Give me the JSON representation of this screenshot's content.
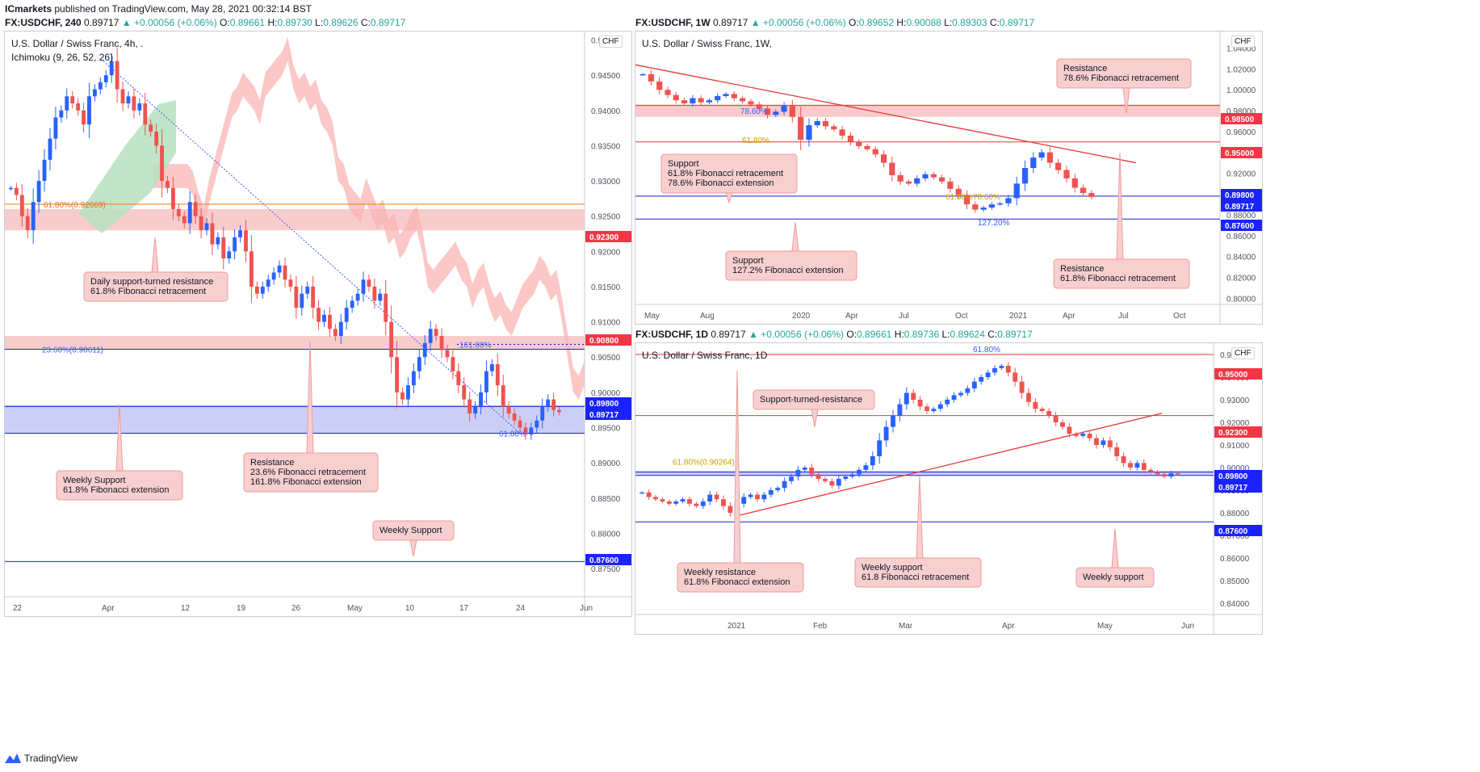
{
  "header": {
    "publisher": "ICmarkets",
    "published_text": "published on TradingView.com, May 28, 2021 00:32:14 BST"
  },
  "colors": {
    "up": "#2962ff",
    "down": "#ef5350",
    "resistance_zone": "#f7c6c6",
    "support_zone": "#c5caf7",
    "red_line": "#e53935",
    "blue_line": "#1a23c9",
    "cloud_red": "#f9b4b4",
    "cloud_green": "#b7dfbf",
    "callout_fill": "#f7cfcf",
    "callout_border": "#ee9b9b"
  },
  "panels": [
    {
      "id": "h4",
      "info": {
        "symbol": "FX:USDCHF, 240",
        "last": "0.89717",
        "change": "+0.00056 (+0.06%)",
        "o": "0.89661",
        "h": "0.89730",
        "l": "0.89626",
        "c": "0.89717"
      },
      "title": "U.S. Dollar / Swiss Franc, 4h, .",
      "indicator": "Ichimoku (9, 26, 52, 26)",
      "currency": "CHF",
      "chart_data": {
        "type": "candlestick",
        "ylim": [
          0.871,
          0.9512
        ],
        "y_ticks": [
          "0.95000",
          "0.94500",
          "0.94000",
          "0.93500",
          "0.93000",
          "0.92500",
          "0.92000",
          "0.91500",
          "0.91000",
          "0.90500",
          "0.90000",
          "0.89500",
          "0.89000",
          "0.88500",
          "0.88000",
          "0.87500"
        ],
        "x_ticks": [
          "22",
          "Apr",
          "12",
          "19",
          "26",
          "May",
          "10",
          "17",
          "24",
          "Jun"
        ],
        "price_labels": [
          {
            "value": "0.92300",
            "kind": "red"
          },
          {
            "value": "0.90800",
            "kind": "red"
          },
          {
            "value": "0.89800",
            "kind": "blue"
          },
          {
            "value": "0.89717",
            "kind": "blue"
          },
          {
            "value": "0.87600",
            "kind": "blue"
          }
        ],
        "fib_labels": [
          "61.80%(0.92669)",
          "23.60%(0.90611)",
          "161.80%",
          "61.80%"
        ],
        "annotations": [
          {
            "lines": [
              "Daily support-turned resistance",
              "61.8% Fibonacci retracement"
            ]
          },
          {
            "lines": [
              "Resistance",
              "23.6% Fibonacci retracement",
              "161.8% Fibonacci extension"
            ]
          },
          {
            "lines": [
              "Weekly Support",
              "61.8% Fibonacci extension"
            ]
          },
          {
            "lines": [
              "Weekly Support"
            ]
          }
        ],
        "series": [
          {
            "values": [
              0.929,
              0.928,
              0.925,
              0.923,
              0.927,
              0.93,
              0.933,
              0.936,
              0.939,
              0.94,
              0.942,
              0.941,
              0.94,
              0.938,
              0.942,
              0.943,
              0.944,
              0.945,
              0.947,
              0.943,
              0.941,
              0.942,
              0.94,
              0.941,
              0.938,
              0.937,
              0.935,
              0.93,
              0.929,
              0.926,
              0.925,
              0.924,
              0.927,
              0.925,
              0.923,
              0.924,
              0.921,
              0.922,
              0.919,
              0.92,
              0.922,
              0.923,
              0.92,
              0.915,
              0.914,
              0.915,
              0.916,
              0.917,
              0.918,
              0.916,
              0.915,
              0.912,
              0.914,
              0.915,
              0.912,
              0.91,
              0.911,
              0.909,
              0.908,
              0.91,
              0.912,
              0.913,
              0.914,
              0.916,
              0.915,
              0.913,
              0.914,
              0.91,
              0.905,
              0.9,
              0.899,
              0.901,
              0.903,
              0.905,
              0.907,
              0.909,
              0.908,
              0.906,
              0.905,
              0.903,
              0.901,
              0.899,
              0.897,
              0.898,
              0.9,
              0.903,
              0.904,
              0.901,
              0.898,
              0.897,
              0.896,
              0.895,
              0.894,
              0.895,
              0.896,
              0.898,
              0.899,
              0.8975,
              0.8972
            ]
          }
        ]
      }
    },
    {
      "id": "w1",
      "info": {
        "symbol": "FX:USDCHF, 1W",
        "last": "0.89717",
        "change": "+0.00056 (+0.06%)",
        "o": "0.89652",
        "h": "0.90088",
        "l": "0.89303",
        "c": "0.89717"
      },
      "title": "U.S. Dollar / Swiss Franc, 1W,",
      "currency": "CHF",
      "chart_data": {
        "type": "candlestick",
        "ylim": [
          0.794,
          1.056
        ],
        "y_ticks": [
          "1.04000",
          "1.02000",
          "1.00000",
          "0.98000",
          "0.96000",
          "0.94000",
          "0.92000",
          "0.90000",
          "0.88000",
          "0.86000",
          "0.84000",
          "0.82000",
          "0.80000"
        ],
        "x_ticks": [
          "May",
          "Aug",
          "2020",
          "Apr",
          "Jul",
          "Oct",
          "2021",
          "Apr",
          "Jul",
          "Oct"
        ],
        "price_labels": [
          {
            "value": "0.98500",
            "kind": "red"
          },
          {
            "value": "0.95000",
            "kind": "red"
          },
          {
            "value": "0.89800",
            "kind": "blue"
          },
          {
            "value": "0.89717",
            "kind": "blue"
          },
          {
            "value": "0.87600",
            "kind": "blue"
          }
        ],
        "fib_labels": [
          "78.60%",
          "61.80%",
          "61.80%",
          "78.60%",
          "127.20%"
        ],
        "annotations": [
          {
            "lines": [
              "Resistance",
              "78.6% Fibonacci retracement"
            ]
          },
          {
            "lines": [
              "Support",
              "61.8% Fibonacci retracement",
              "78.6% Fibonacci extension"
            ]
          },
          {
            "lines": [
              "Support",
              "127.2% Fibonacci extension"
            ]
          },
          {
            "lines": [
              "Resistance",
              "61.8% Fibonacci retracement"
            ]
          }
        ],
        "series": [
          {
            "values": [
              1.015,
              1.008,
              1.0,
              0.995,
              0.99,
              0.987,
              0.992,
              0.988,
              0.99,
              0.994,
              0.996,
              0.992,
              0.989,
              0.986,
              0.982,
              0.976,
              0.979,
              0.985,
              0.974,
              0.952,
              0.966,
              0.97,
              0.965,
              0.962,
              0.956,
              0.95,
              0.946,
              0.943,
              0.938,
              0.93,
              0.918,
              0.912,
              0.91,
              0.915,
              0.919,
              0.916,
              0.912,
              0.905,
              0.899,
              0.89,
              0.885,
              0.887,
              0.89,
              0.891,
              0.896,
              0.91,
              0.925,
              0.935,
              0.94,
              0.93,
              0.923,
              0.915,
              0.906,
              0.901,
              0.8972
            ]
          }
        ]
      }
    },
    {
      "id": "d1",
      "info": {
        "symbol": "FX:USDCHF, 1D",
        "last": "0.89717",
        "change": "+0.00056 (+0.06%)",
        "o": "0.89661",
        "h": "0.89736",
        "l": "0.89624",
        "c": "0.89717"
      },
      "title": "U.S. Dollar / Swiss Franc, 1D",
      "currency": "CHF",
      "chart_data": {
        "type": "candlestick",
        "ylim": [
          0.835,
          0.955
        ],
        "y_ticks": [
          "0.95000",
          "0.94000",
          "0.93000",
          "0.92000",
          "0.91000",
          "0.90000",
          "0.89000",
          "0.88000",
          "0.87000",
          "0.86000",
          "0.85000",
          "0.84000"
        ],
        "x_ticks": [
          "2021",
          "Feb",
          "Mar",
          "Apr",
          "May",
          "Jun"
        ],
        "price_labels": [
          {
            "value": "0.95000",
            "kind": "red"
          },
          {
            "value": "0.92300",
            "kind": "red"
          },
          {
            "value": "0.89800",
            "kind": "blue"
          },
          {
            "value": "0.89717",
            "kind": "blue"
          },
          {
            "value": "0.87600",
            "kind": "blue"
          }
        ],
        "fib_labels": [
          "61.80%",
          "61.80%(0.90264)"
        ],
        "annotations": [
          {
            "lines": [
              "Support-turned-resistance"
            ]
          },
          {
            "lines": [
              "Weekly resistance",
              "61.8% Fibonacci extension"
            ]
          },
          {
            "lines": [
              "Weekly support",
              "61.8 Fibonacci retracement"
            ]
          },
          {
            "lines": [
              "Weekly support"
            ]
          }
        ],
        "series": [
          {
            "values": [
              0.889,
              0.887,
              0.886,
              0.885,
              0.884,
              0.885,
              0.886,
              0.884,
              0.883,
              0.885,
              0.888,
              0.886,
              0.883,
              0.88,
              0.884,
              0.887,
              0.888,
              0.886,
              0.888,
              0.89,
              0.891,
              0.894,
              0.896,
              0.899,
              0.9,
              0.897,
              0.895,
              0.894,
              0.892,
              0.895,
              0.896,
              0.897,
              0.899,
              0.901,
              0.905,
              0.912,
              0.918,
              0.923,
              0.928,
              0.933,
              0.93,
              0.927,
              0.925,
              0.926,
              0.928,
              0.93,
              0.932,
              0.933,
              0.935,
              0.938,
              0.94,
              0.942,
              0.944,
              0.945,
              0.942,
              0.938,
              0.933,
              0.929,
              0.926,
              0.925,
              0.923,
              0.92,
              0.918,
              0.915,
              0.914,
              0.915,
              0.913,
              0.91,
              0.912,
              0.909,
              0.905,
              0.902,
              0.9,
              0.902,
              0.899,
              0.898,
              0.897,
              0.896,
              0.8975,
              0.8972
            ]
          }
        ]
      }
    }
  ],
  "footer": {
    "brand": "TradingView"
  }
}
